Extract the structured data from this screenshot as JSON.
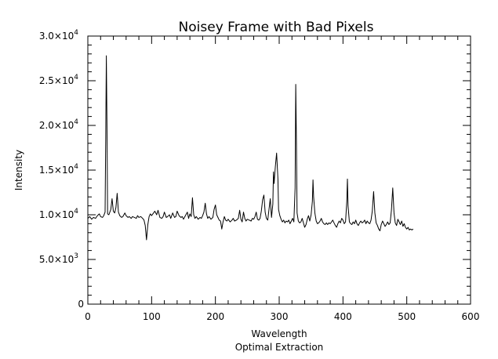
{
  "chart_data": {
    "type": "line",
    "title": "Noisey Frame with Bad Pixels",
    "xlabel": "Wavelength",
    "subtitle": "Optimal Extraction",
    "ylabel": "Intensity",
    "xlim": [
      0,
      600
    ],
    "ylim": [
      0,
      30000
    ],
    "grid": false,
    "x_ticks": [
      {
        "value": 0,
        "label": "0"
      },
      {
        "value": 100,
        "label": "100"
      },
      {
        "value": 200,
        "label": "200"
      },
      {
        "value": 300,
        "label": "300"
      },
      {
        "value": 400,
        "label": "400"
      },
      {
        "value": 500,
        "label": "500"
      },
      {
        "value": 600,
        "label": "600"
      }
    ],
    "y_ticks": [
      {
        "value": 0,
        "mantissa": "0",
        "exponent": ""
      },
      {
        "value": 5000,
        "mantissa": "5.0×10",
        "exponent": "3"
      },
      {
        "value": 10000,
        "mantissa": "1.0×10",
        "exponent": "4"
      },
      {
        "value": 15000,
        "mantissa": "1.5×10",
        "exponent": "4"
      },
      {
        "value": 20000,
        "mantissa": "2.0×10",
        "exponent": "4"
      },
      {
        "value": 25000,
        "mantissa": "2.5×10",
        "exponent": "4"
      },
      {
        "value": 30000,
        "mantissa": "3.0×10",
        "exponent": "4"
      }
    ],
    "series": [
      {
        "color": "#000000",
        "points": [
          [
            0,
            9600
          ],
          [
            3,
            9800
          ],
          [
            6,
            9500
          ],
          [
            9,
            9700
          ],
          [
            12,
            9600
          ],
          [
            15,
            9900
          ],
          [
            18,
            10100
          ],
          [
            20,
            9800
          ],
          [
            23,
            9700
          ],
          [
            25,
            9900
          ],
          [
            27,
            10300
          ],
          [
            28,
            18500
          ],
          [
            29,
            27800
          ],
          [
            30,
            20000
          ],
          [
            31,
            10100
          ],
          [
            33,
            10000
          ],
          [
            36,
            10600
          ],
          [
            38,
            11800
          ],
          [
            40,
            10400
          ],
          [
            42,
            10200
          ],
          [
            44,
            10800
          ],
          [
            46,
            12400
          ],
          [
            48,
            10300
          ],
          [
            50,
            9900
          ],
          [
            53,
            9700
          ],
          [
            55,
            9800
          ],
          [
            58,
            10200
          ],
          [
            60,
            9900
          ],
          [
            63,
            9700
          ],
          [
            65,
            9800
          ],
          [
            68,
            9600
          ],
          [
            70,
            9800
          ],
          [
            73,
            9700
          ],
          [
            76,
            9600
          ],
          [
            78,
            9900
          ],
          [
            80,
            9700
          ],
          [
            83,
            9800
          ],
          [
            86,
            9600
          ],
          [
            88,
            9400
          ],
          [
            90,
            8800
          ],
          [
            92,
            7200
          ],
          [
            94,
            8900
          ],
          [
            96,
            9800
          ],
          [
            98,
            10100
          ],
          [
            100,
            9900
          ],
          [
            103,
            10200
          ],
          [
            105,
            10400
          ],
          [
            108,
            10000
          ],
          [
            110,
            10500
          ],
          [
            113,
            9700
          ],
          [
            116,
            9600
          ],
          [
            118,
            9800
          ],
          [
            120,
            10300
          ],
          [
            123,
            9700
          ],
          [
            125,
            9800
          ],
          [
            128,
            10000
          ],
          [
            130,
            9600
          ],
          [
            133,
            10200
          ],
          [
            136,
            9700
          ],
          [
            138,
            9800
          ],
          [
            140,
            10400
          ],
          [
            143,
            9900
          ],
          [
            146,
            9700
          ],
          [
            148,
            9800
          ],
          [
            150,
            9500
          ],
          [
            153,
            9900
          ],
          [
            156,
            10300
          ],
          [
            158,
            9600
          ],
          [
            160,
            10100
          ],
          [
            162,
            9800
          ],
          [
            164,
            11900
          ],
          [
            166,
            10000
          ],
          [
            168,
            9600
          ],
          [
            170,
            9800
          ],
          [
            173,
            9500
          ],
          [
            176,
            9700
          ],
          [
            178,
            9600
          ],
          [
            180,
            9900
          ],
          [
            182,
            10300
          ],
          [
            184,
            11300
          ],
          [
            186,
            10100
          ],
          [
            188,
            9600
          ],
          [
            190,
            9800
          ],
          [
            193,
            9500
          ],
          [
            196,
            9700
          ],
          [
            198,
            10600
          ],
          [
            200,
            11100
          ],
          [
            202,
            10000
          ],
          [
            204,
            9700
          ],
          [
            206,
            9400
          ],
          [
            208,
            9300
          ],
          [
            210,
            8400
          ],
          [
            212,
            9200
          ],
          [
            214,
            9800
          ],
          [
            216,
            9400
          ],
          [
            218,
            9300
          ],
          [
            220,
            9500
          ],
          [
            223,
            9200
          ],
          [
            226,
            9400
          ],
          [
            228,
            9600
          ],
          [
            230,
            9300
          ],
          [
            233,
            9400
          ],
          [
            236,
            9600
          ],
          [
            238,
            10500
          ],
          [
            240,
            9500
          ],
          [
            242,
            9200
          ],
          [
            244,
            10300
          ],
          [
            246,
            9600
          ],
          [
            248,
            9300
          ],
          [
            250,
            9500
          ],
          [
            253,
            9400
          ],
          [
            256,
            9300
          ],
          [
            258,
            9600
          ],
          [
            260,
            9500
          ],
          [
            262,
            9800
          ],
          [
            264,
            10300
          ],
          [
            266,
            9500
          ],
          [
            268,
            9400
          ],
          [
            270,
            9600
          ],
          [
            272,
            10400
          ],
          [
            274,
            11700
          ],
          [
            276,
            12200
          ],
          [
            278,
            10300
          ],
          [
            280,
            9600
          ],
          [
            282,
            9400
          ],
          [
            284,
            10600
          ],
          [
            286,
            11800
          ],
          [
            288,
            9700
          ],
          [
            290,
            11200
          ],
          [
            291,
            14800
          ],
          [
            292,
            13500
          ],
          [
            294,
            15400
          ],
          [
            296,
            16900
          ],
          [
            298,
            14000
          ],
          [
            299,
            10600
          ],
          [
            301,
            9900
          ],
          [
            303,
            9500
          ],
          [
            305,
            9200
          ],
          [
            307,
            9400
          ],
          [
            309,
            9100
          ],
          [
            311,
            9300
          ],
          [
            313,
            9200
          ],
          [
            315,
            9400
          ],
          [
            317,
            9000
          ],
          [
            319,
            9300
          ],
          [
            321,
            9600
          ],
          [
            323,
            9200
          ],
          [
            325,
            13000
          ],
          [
            326,
            24600
          ],
          [
            327,
            18000
          ],
          [
            328,
            10200
          ],
          [
            330,
            9300
          ],
          [
            332,
            9100
          ],
          [
            334,
            9200
          ],
          [
            336,
            9600
          ],
          [
            338,
            9100
          ],
          [
            340,
            8600
          ],
          [
            342,
            8900
          ],
          [
            344,
            9500
          ],
          [
            346,
            9900
          ],
          [
            348,
            9300
          ],
          [
            350,
            10000
          ],
          [
            352,
            11500
          ],
          [
            353,
            13900
          ],
          [
            354,
            12000
          ],
          [
            356,
            10200
          ],
          [
            358,
            9300
          ],
          [
            360,
            9000
          ],
          [
            362,
            9100
          ],
          [
            364,
            9300
          ],
          [
            366,
            9600
          ],
          [
            368,
            9200
          ],
          [
            370,
            9000
          ],
          [
            372,
            8900
          ],
          [
            374,
            9100
          ],
          [
            376,
            8900
          ],
          [
            378,
            9100
          ],
          [
            380,
            9000
          ],
          [
            382,
            9200
          ],
          [
            384,
            9400
          ],
          [
            386,
            9100
          ],
          [
            388,
            8800
          ],
          [
            390,
            8600
          ],
          [
            392,
            9000
          ],
          [
            394,
            9300
          ],
          [
            396,
            9100
          ],
          [
            398,
            9600
          ],
          [
            400,
            9400
          ],
          [
            402,
            9000
          ],
          [
            404,
            9200
          ],
          [
            406,
            11500
          ],
          [
            407,
            14000
          ],
          [
            408,
            11000
          ],
          [
            410,
            9200
          ],
          [
            412,
            9000
          ],
          [
            414,
            8900
          ],
          [
            416,
            9200
          ],
          [
            418,
            9000
          ],
          [
            420,
            9400
          ],
          [
            422,
            9000
          ],
          [
            424,
            8800
          ],
          [
            426,
            9100
          ],
          [
            428,
            9300
          ],
          [
            430,
            9100
          ],
          [
            432,
            9200
          ],
          [
            434,
            9400
          ],
          [
            436,
            9000
          ],
          [
            438,
            9300
          ],
          [
            440,
            9100
          ],
          [
            442,
            9000
          ],
          [
            444,
            9400
          ],
          [
            446,
            10400
          ],
          [
            448,
            12600
          ],
          [
            450,
            10200
          ],
          [
            452,
            9100
          ],
          [
            454,
            8800
          ],
          [
            456,
            8400
          ],
          [
            458,
            8200
          ],
          [
            460,
            8900
          ],
          [
            462,
            9300
          ],
          [
            464,
            9000
          ],
          [
            466,
            8700
          ],
          [
            468,
            8900
          ],
          [
            470,
            9200
          ],
          [
            472,
            8900
          ],
          [
            474,
            9100
          ],
          [
            476,
            10500
          ],
          [
            478,
            13000
          ],
          [
            480,
            10200
          ],
          [
            482,
            9100
          ],
          [
            484,
            8800
          ],
          [
            486,
            9500
          ],
          [
            488,
            9200
          ],
          [
            490,
            8900
          ],
          [
            492,
            9300
          ],
          [
            494,
            8700
          ],
          [
            496,
            9000
          ],
          [
            498,
            8600
          ],
          [
            500,
            8400
          ],
          [
            502,
            8600
          ],
          [
            504,
            8300
          ],
          [
            506,
            8400
          ],
          [
            508,
            8300
          ],
          [
            510,
            8400
          ]
        ]
      }
    ]
  }
}
